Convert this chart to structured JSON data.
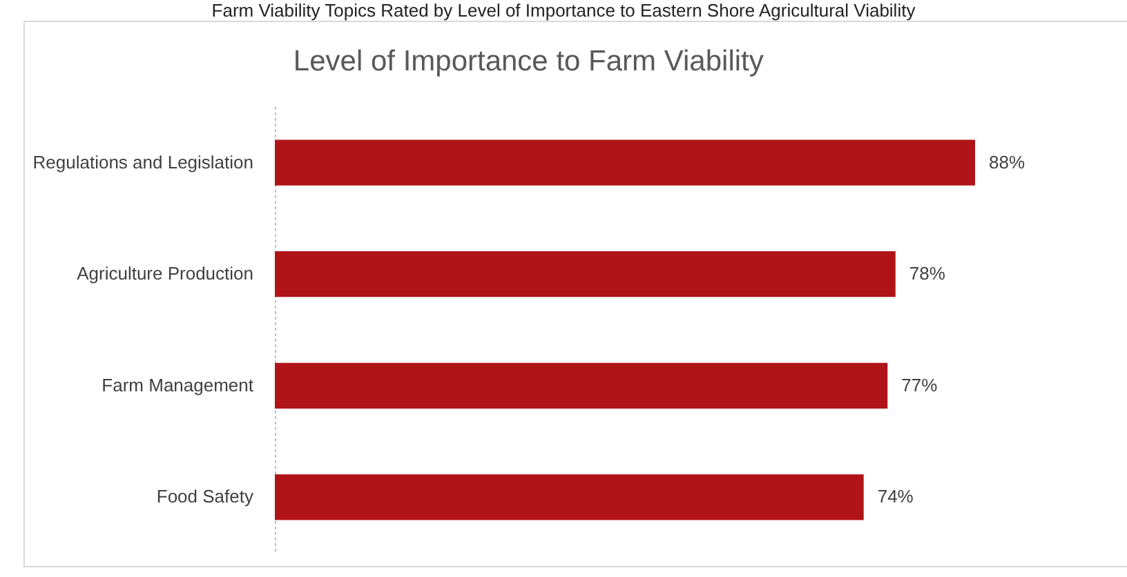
{
  "chart_data": {
    "type": "bar",
    "orientation": "horizontal",
    "title": "Level of Importance to Farm Viability",
    "annotations": [
      "Farm Viability Topics Rated by Level of Importance to Eastern Shore Agricultural Viability"
    ],
    "categories": [
      "Regulations and Legislation",
      "Agriculture Production",
      "Farm Management",
      "Food Safety"
    ],
    "values": [
      88,
      78,
      77,
      74
    ],
    "value_labels": [
      "88%",
      "78%",
      "77%",
      "74%"
    ],
    "color": "#b01419"
  }
}
